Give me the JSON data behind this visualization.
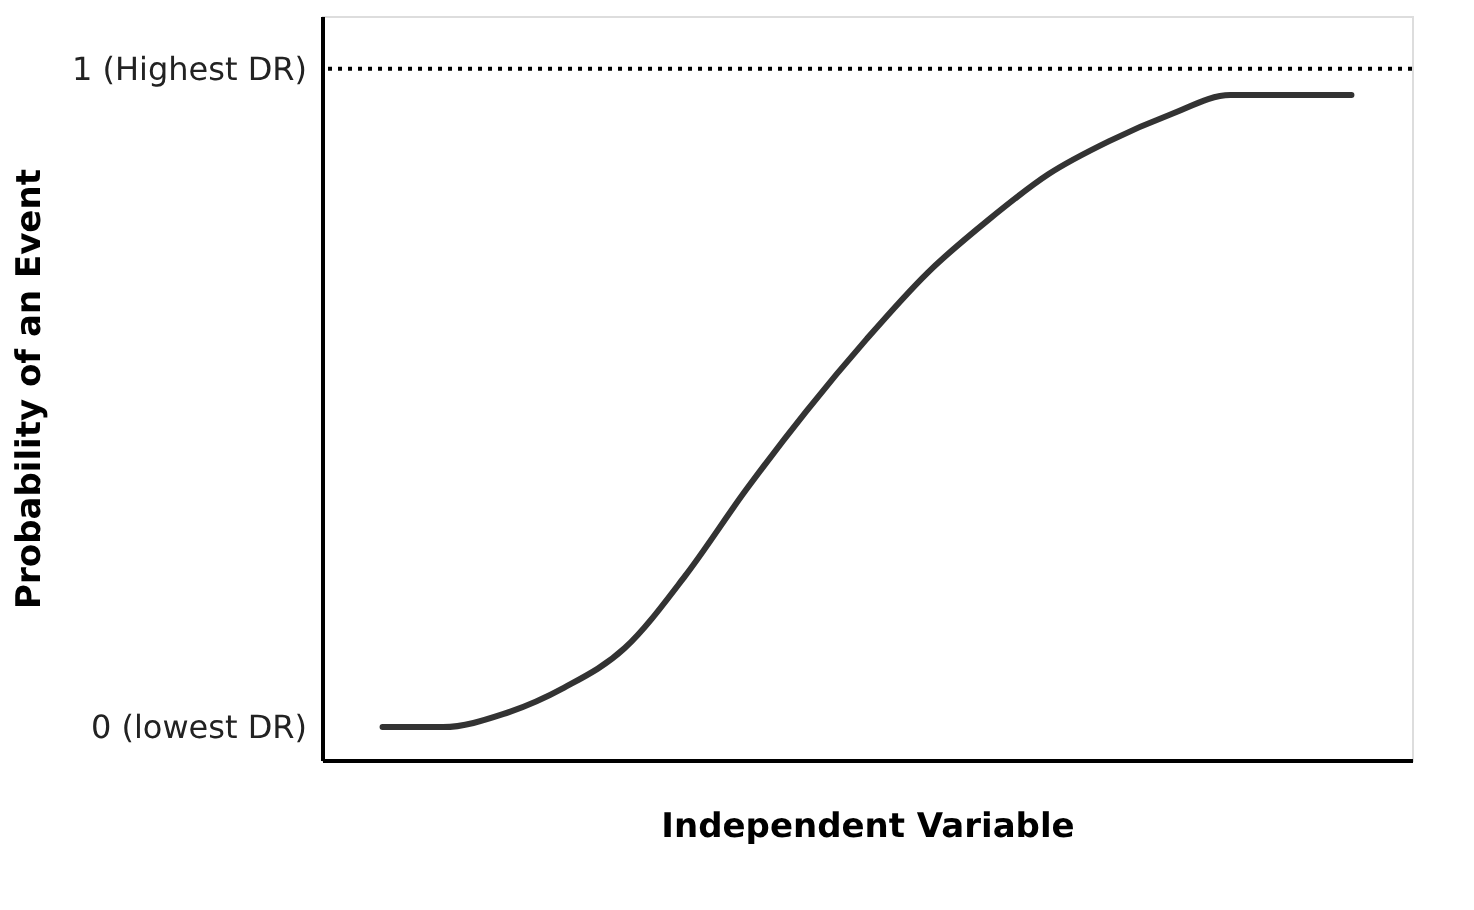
{
  "chart_data": {
    "type": "line",
    "xlabel": "Independent Variable",
    "ylabel": "Probability of an Event",
    "categories": [
      null,
      null,
      null,
      null,
      null,
      null,
      null,
      null,
      null,
      null,
      null,
      null,
      null,
      null,
      null,
      null,
      null
    ],
    "series": [
      {
        "color": "#333333",
        "values": [
          0.0,
          0.0,
          0.02,
          0.06,
          0.12,
          0.23,
          0.36,
          0.48,
          0.59,
          0.69,
          0.77,
          0.84,
          0.89,
          0.93,
          0.96,
          0.96,
          0.96
        ]
      }
    ],
    "ylim": [
      -0.05,
      1.08
    ],
    "yticks": [
      {
        "value": 0,
        "label": "0 (lowest DR)"
      },
      {
        "value": 1,
        "label": "1 (Highest DR)"
      }
    ],
    "ref_lines": [
      {
        "axis": "y",
        "value": 1,
        "label": null,
        "color": "#000000",
        "line_style": "dotted"
      }
    ],
    "tick_labels": "y",
    "grid": false,
    "marker": "none",
    "line_style": "solid"
  }
}
